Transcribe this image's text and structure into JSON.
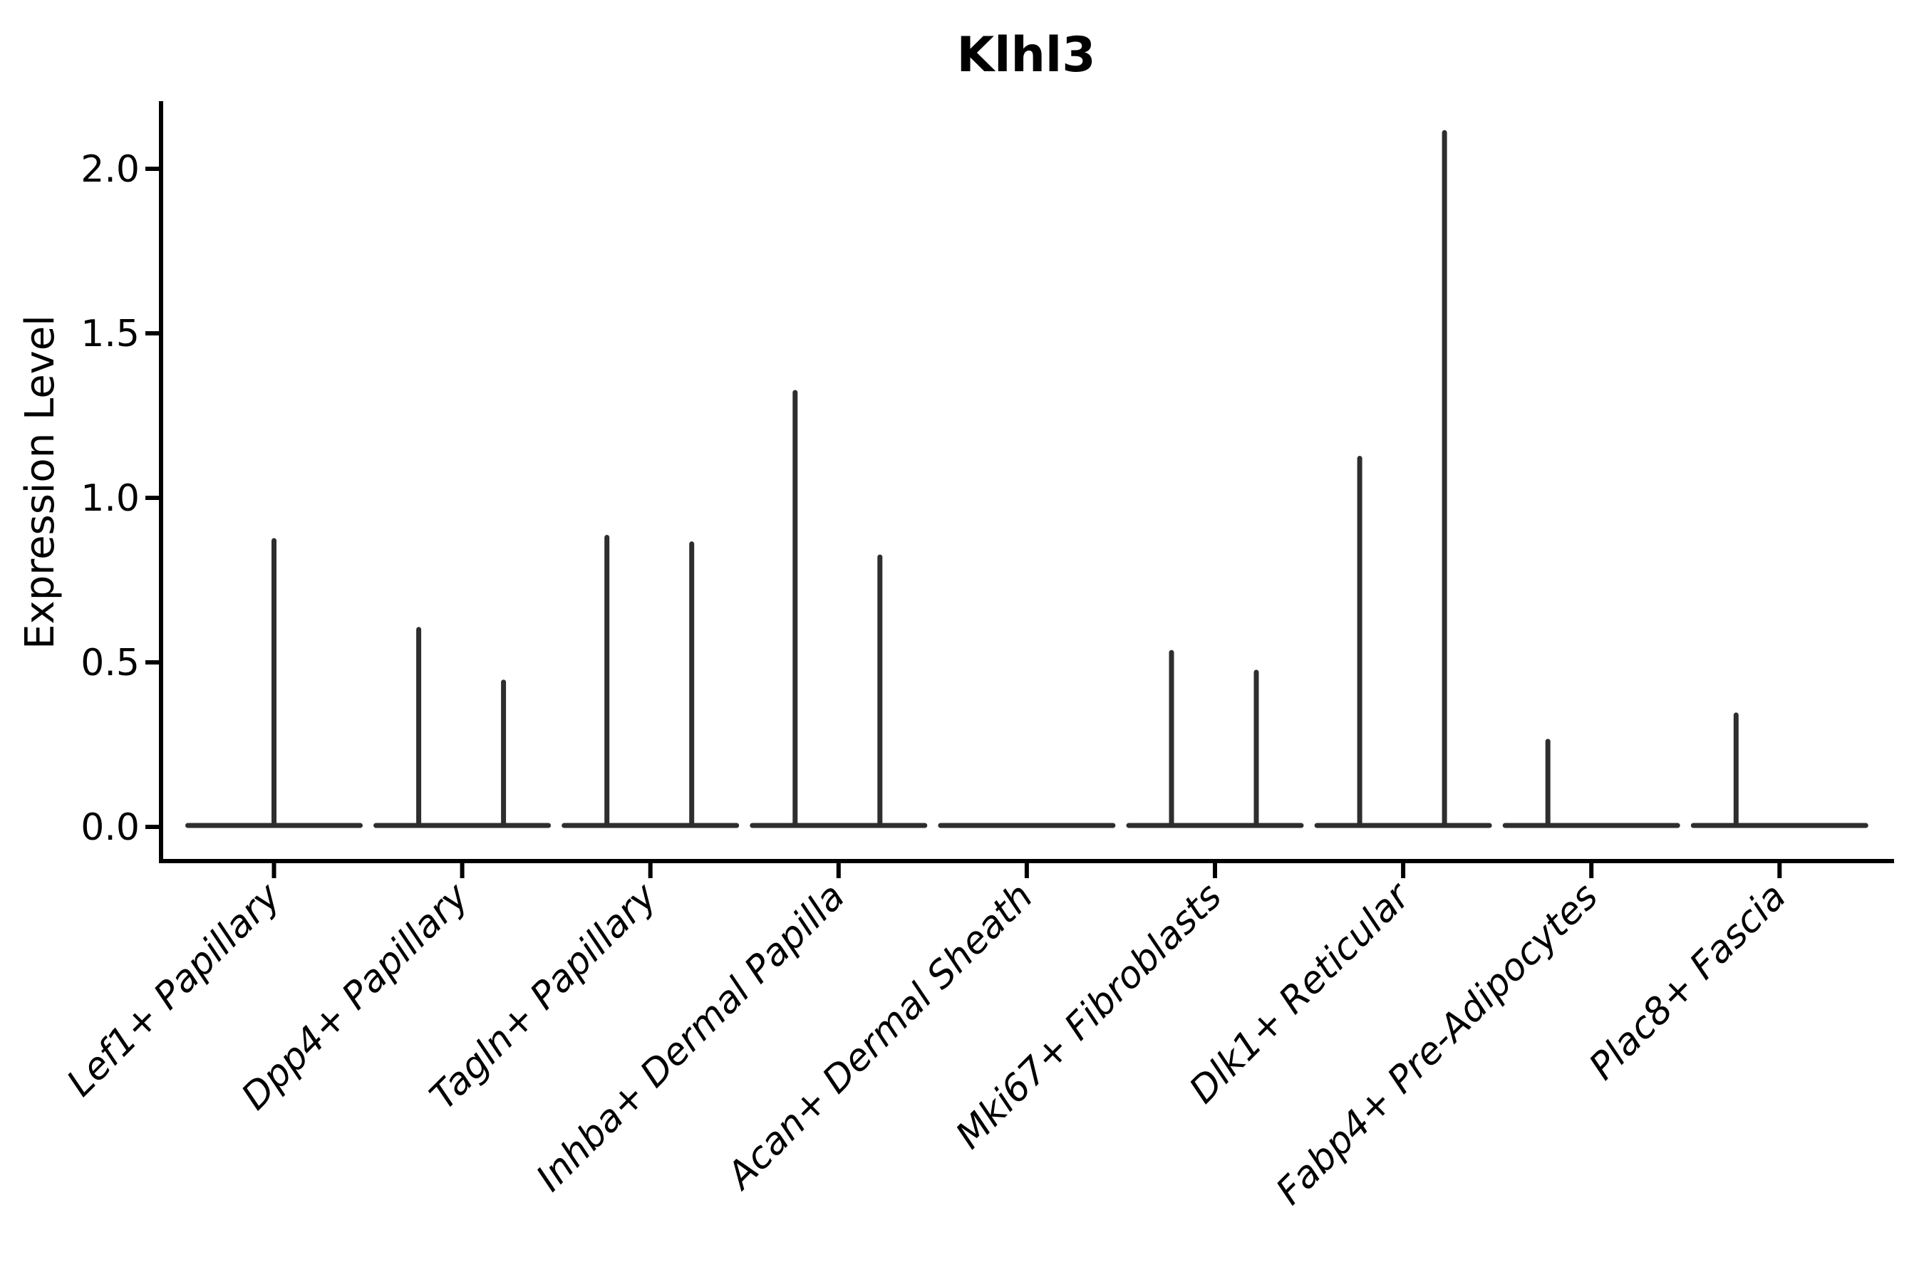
{
  "title": "Klhl3",
  "y_axis": {
    "label": "Expression Level",
    "tick_labels": [
      "2.0",
      "1.5",
      "1.0",
      "0.5",
      "0.0"
    ]
  },
  "colors": {
    "background": "#ffffff",
    "axis": "#000000",
    "violin_stroke": "#2e2e2e"
  },
  "chart_data": {
    "type": "violin",
    "title": "Klhl3",
    "ylabel": "Expression Level",
    "xlabel": "",
    "ylim": [
      -0.1,
      2.2
    ],
    "yticks": [
      0.0,
      0.5,
      1.0,
      1.5,
      2.0
    ],
    "grid": false,
    "legend": "none",
    "style_notes": "Sparse single-cell violin plot: each category is a flat zero-expression baseline with thin density spikes reaching the maximum expression values; x labels rotated 45 degrees, italic",
    "categories": [
      {
        "label": "Lef1+ Papillary",
        "baseline_value": 0.0,
        "spikes": [
          {
            "pos": "center",
            "value": 0.87
          }
        ]
      },
      {
        "label": "Dpp4+ Papillary",
        "baseline_value": 0.0,
        "spikes": [
          {
            "pos": "left",
            "value": 0.6
          },
          {
            "pos": "right",
            "value": 0.44
          }
        ]
      },
      {
        "label": "Tagln+ Papillary",
        "baseline_value": 0.0,
        "spikes": [
          {
            "pos": "left",
            "value": 0.88
          },
          {
            "pos": "right",
            "value": 0.86
          }
        ]
      },
      {
        "label": "Inhba+ Dermal Papilla",
        "baseline_value": 0.0,
        "spikes": [
          {
            "pos": "left",
            "value": 1.32
          },
          {
            "pos": "right",
            "value": 0.82
          }
        ]
      },
      {
        "label": "Acan+ Dermal Sheath",
        "baseline_value": 0.0,
        "spikes": []
      },
      {
        "label": "Mki67+ Fibroblasts",
        "baseline_value": 0.0,
        "spikes": [
          {
            "pos": "left",
            "value": 0.53
          },
          {
            "pos": "right",
            "value": 0.47
          }
        ]
      },
      {
        "label": "Dlk1+ Reticular",
        "baseline_value": 0.0,
        "spikes": [
          {
            "pos": "left",
            "value": 1.12
          },
          {
            "pos": "right",
            "value": 2.11
          }
        ]
      },
      {
        "label": "Fabp4+ Pre-Adipocytes",
        "baseline_value": 0.0,
        "spikes": [
          {
            "pos": "left",
            "value": 0.26
          }
        ]
      },
      {
        "label": "Plac8+ Fascia",
        "baseline_value": 0.0,
        "spikes": [
          {
            "pos": "left",
            "value": 0.34
          }
        ]
      }
    ]
  }
}
